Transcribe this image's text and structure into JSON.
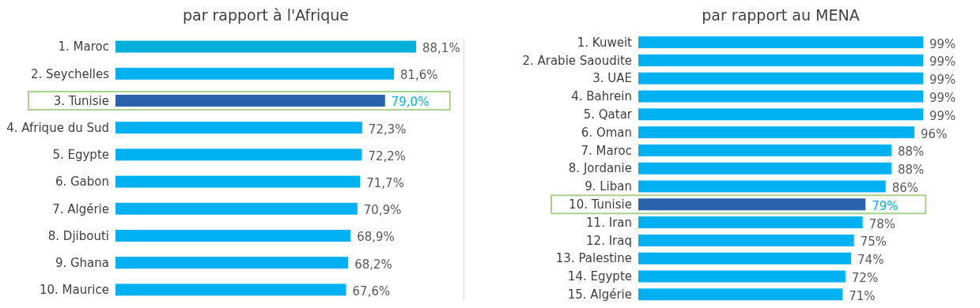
{
  "chart_data": [
    {
      "type": "bar",
      "orientation": "horizontal",
      "title": "par rapport à l'Afrique",
      "categories": [
        "1. Maroc",
        "2. Seychelles",
        "3. Tunisie",
        "4. Afrique du Sud",
        "5. Egypte",
        "6. Gabon",
        "7. Algérie",
        "8. Djibouti",
        "9. Ghana",
        "10. Maurice"
      ],
      "values": [
        88.1,
        81.6,
        79.0,
        72.3,
        72.2,
        71.7,
        70.9,
        68.9,
        68.2,
        67.6
      ],
      "colors": [
        "#00b0d8",
        "#00b0f0",
        "#2a62ac",
        "#00b0f0",
        "#00b0f0",
        "#00b0f0",
        "#00b0f0",
        "#00b0f0",
        "#00b0f0",
        "#00b0f0"
      ],
      "value_labels": [
        "88,1%",
        "81,6%",
        "79,0%",
        "72,3%",
        "72,2%",
        "71,7%",
        "70,9%",
        "68,9%",
        "68,2%",
        "67,6%"
      ],
      "legend": false,
      "grid": false
    },
    {
      "type": "bar",
      "orientation": "horizontal",
      "title": "par rapport au MENA",
      "categories": [
        "1. Kuweit",
        "2. Arabie Saoudite",
        "3. UAE",
        "4. Bahrein",
        "5. Qatar",
        "6. Oman",
        "7. Maroc",
        "8. Jordanie",
        "9. Liban",
        "10. Tunisie",
        "11. Iran",
        "12. Iraq",
        "13. Palestine",
        "14. Egypte",
        "15. Algérie"
      ],
      "values": [
        99,
        99,
        99,
        99,
        99,
        96,
        88,
        88,
        86,
        79,
        78,
        75,
        74,
        72,
        71
      ],
      "colors": [
        "#00b0f0",
        "#00b0f0",
        "#00b0f0",
        "#00b0f0",
        "#00b0f0",
        "#00b0f0",
        "#00b0f0",
        "#00b0f0",
        "#00b0f0",
        "#2a62ac",
        "#00b0f0",
        "#00b0f0",
        "#00b0f0",
        "#00b0f0",
        "#00b0f0"
      ],
      "value_labels": [
        "99%",
        "99%",
        "99%",
        "99%",
        "99%",
        "96%",
        "88%",
        "88%",
        "86%",
        "79%",
        "78%",
        "75%",
        "74%",
        "72%",
        "71%"
      ],
      "legend": false,
      "grid": false
    }
  ]
}
